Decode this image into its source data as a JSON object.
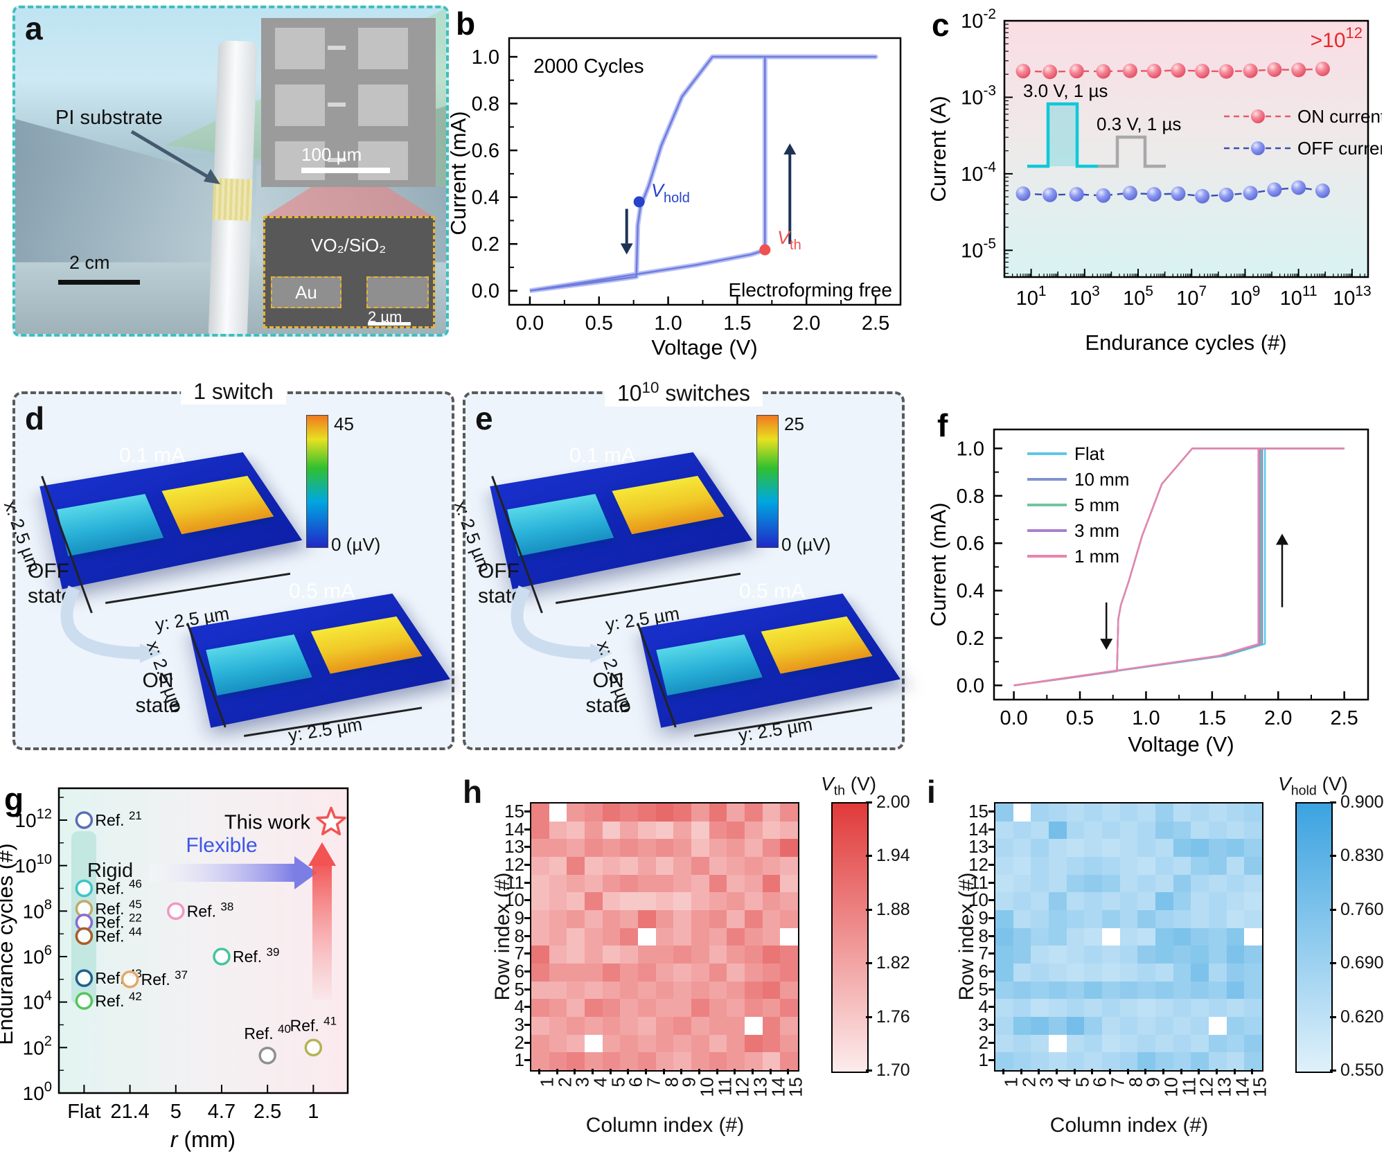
{
  "panels": {
    "a": {
      "label": "a",
      "pi_substrate": "PI substrate",
      "photo_scale": "2 cm",
      "sem_top_scale": "100 µm",
      "inset_film": "VO₂/SiO₂",
      "inset_electrode": "Au",
      "inset_scale": "2 µm"
    },
    "b": {
      "label": "b",
      "annotation": "2000 Cycles",
      "note": "Electroforming free",
      "xlabel": "Voltage (V)",
      "ylabel": "Current (mA)",
      "v_hold": {
        "prefix": "V",
        "sub": "hold"
      },
      "v_th": {
        "prefix": "V",
        "sub": "th"
      }
    },
    "c": {
      "label": "c",
      "xlabel": "Endurance cycles (#)",
      "ylabel": "Current (A)",
      "annotation": {
        "text": ">10",
        "exp": "12"
      }
    },
    "d": {
      "label": "d",
      "title": "1 switch",
      "map_top_current": "0.1 mA",
      "map_bottom_current": "0.5 mA",
      "x_axis": "x: 2.5 µm",
      "y_axis": "y: 2.5 µm",
      "off_state": "OFF state",
      "on_state": "ON state",
      "cbar_max": "45",
      "cbar_min": "0 (µV)"
    },
    "e": {
      "label": "e",
      "title": {
        "base": "10",
        "exp": "10",
        "suffix": " switches"
      },
      "map_top_current": "0.1 mA",
      "map_bottom_current": "0.5 mA",
      "x_axis": "x: 2.5 µm",
      "y_axis": "y: 2.5 µm",
      "off_state": "OFF state",
      "on_state": "ON state",
      "cbar_max": "25",
      "cbar_min": "0 (µV)"
    },
    "f": {
      "label": "f",
      "xlabel": "Voltage (V)",
      "ylabel": "Current (mA)"
    },
    "g": {
      "label": "g",
      "xlabel_italic": "r",
      "xlabel_rest": " (mm)",
      "ylabel": "Endurance cycles (#)"
    },
    "h": {
      "label": "h",
      "xlabel": "Column index (#)",
      "ylabel": "Row index (#)",
      "cbar_title": {
        "prefix": "V",
        "sub": "th",
        "suffix": " (V)"
      }
    },
    "i": {
      "label": "i",
      "xlabel": "Column index (#)",
      "ylabel": "Row index (#)",
      "cbar_title": {
        "prefix": "V",
        "sub": "hold",
        "suffix": " (V)"
      }
    }
  },
  "chart_data": [
    {
      "panel": "b",
      "type": "line",
      "title": "2000 Cycles",
      "note": "Electroforming free",
      "xlabel": "Voltage (V)",
      "ylabel": "Current (mA)",
      "xticks": [
        0.0,
        0.5,
        1.0,
        1.5,
        2.0,
        2.5
      ],
      "yticks": [
        0.0,
        0.2,
        0.4,
        0.6,
        0.8,
        1.0
      ],
      "v_th_V": 1.7,
      "v_hold_V": 0.79,
      "compliance_mA": 1.0,
      "sweep_up": [
        [
          0,
          0
        ],
        [
          0.6,
          0.055
        ],
        [
          1.2,
          0.11
        ],
        [
          1.6,
          0.155
        ],
        [
          1.68,
          0.17
        ],
        [
          1.7,
          0.175
        ],
        [
          1.7,
          1.0
        ],
        [
          2.5,
          1.0
        ]
      ],
      "sweep_down": [
        [
          2.5,
          1.0
        ],
        [
          1.32,
          1.0
        ],
        [
          1.1,
          0.83
        ],
        [
          0.95,
          0.62
        ],
        [
          0.86,
          0.45
        ],
        [
          0.8,
          0.36
        ],
        [
          0.78,
          0.28
        ],
        [
          0.77,
          0.06
        ],
        [
          0.4,
          0.03
        ],
        [
          0,
          0
        ]
      ],
      "line_color": "#6f7ce0",
      "halo_color": "#b9c2f2"
    },
    {
      "panel": "c",
      "type": "scatter",
      "xlabel": "Endurance cycles (#)",
      "ylabel": "Current (A)",
      "x_tick_exponents": [
        1,
        3,
        5,
        7,
        9,
        11,
        13
      ],
      "y_tick_exponents": [
        -2,
        -3,
        -4,
        -5
      ],
      "cycles_exponents": [
        0.7,
        1.7,
        2.7,
        3.7,
        4.7,
        5.6,
        6.5,
        7.4,
        8.3,
        9.2,
        10.1,
        11.0,
        11.9
      ],
      "on_current_A": [
        0.0022,
        0.00215,
        0.0022,
        0.00218,
        0.00222,
        0.0022,
        0.00225,
        0.0022,
        0.00218,
        0.00222,
        0.0023,
        0.00228,
        0.00235
      ],
      "off_current_A": [
        5.5e-05,
        5.3e-05,
        5.4e-05,
        5.2e-05,
        5.6e-05,
        5.4e-05,
        5.5e-05,
        5.1e-05,
        5.3e-05,
        5.6e-05,
        6.2e-05,
        6.6e-05,
        6e-05
      ],
      "on_off_ratio_annotation": ">10^12",
      "legend": [
        "ON current",
        "OFF current"
      ],
      "set_pulse": "3.0 V, 1 µs",
      "read_pulse": "0.3 V, 1 µs",
      "on_color": "#ee6b81",
      "off_color": "#7d8ce8"
    },
    {
      "panel": "f",
      "type": "line",
      "xlabel": "Voltage (V)",
      "ylabel": "Current (mA)",
      "xticks": [
        0.0,
        0.5,
        1.0,
        1.5,
        2.0,
        2.5
      ],
      "yticks": [
        0.0,
        0.2,
        0.4,
        0.6,
        0.8,
        1.0
      ],
      "series": [
        {
          "name": "Flat",
          "color": "#5ec8e6",
          "v_th": 1.9
        },
        {
          "name": "10 mm",
          "color": "#8292cf",
          "v_th": 1.88
        },
        {
          "name": "5 mm",
          "color": "#72c49e",
          "v_th": 1.87
        },
        {
          "name": "3 mm",
          "color": "#a981cc",
          "v_th": 1.86
        },
        {
          "name": "1 mm",
          "color": "#e885ad",
          "v_th": 1.85
        }
      ],
      "v_hold_V": 0.79,
      "sweep_down": [
        [
          2.5,
          1.0
        ],
        [
          1.35,
          1.0
        ],
        [
          1.12,
          0.85
        ],
        [
          0.97,
          0.63
        ],
        [
          0.87,
          0.44
        ],
        [
          0.81,
          0.34
        ],
        [
          0.79,
          0.28
        ],
        [
          0.78,
          0.06
        ],
        [
          0.4,
          0.03
        ],
        [
          0,
          0
        ]
      ]
    },
    {
      "panel": "g",
      "type": "scatter",
      "xlabel": "r (mm)",
      "ylabel": "Endurance cycles (#)",
      "x_categories": [
        "Flat",
        "21.4",
        "5",
        "4.7",
        "2.5",
        "1"
      ],
      "y_tick_exponents": [
        0,
        2,
        4,
        6,
        8,
        10,
        12
      ],
      "rigid_label": "Rigid",
      "flexible_label": "Flexible",
      "points": [
        {
          "label": "Ref.",
          "ref": "21",
          "x": "Flat",
          "cycles_exp": 12,
          "color": "#5a6db8"
        },
        {
          "label": "Ref.",
          "ref": "46",
          "x": "Flat",
          "cycles_exp": 9,
          "color": "#3fc3c8"
        },
        {
          "label": "Ref.",
          "ref": "45",
          "x": "Flat",
          "cycles_exp": 8.1,
          "color": "#c3a96a"
        },
        {
          "label": "Ref.",
          "ref": "22",
          "x": "Flat",
          "cycles_exp": 7.5,
          "color": "#8a6ad2"
        },
        {
          "label": "Ref.",
          "ref": "44",
          "x": "Flat",
          "cycles_exp": 6.9,
          "color": "#a85c28"
        },
        {
          "label": "Ref.",
          "ref": "43",
          "x": "Flat",
          "cycles_exp": 5.05,
          "color": "#1f5f8e"
        },
        {
          "label": "Ref.",
          "ref": "37",
          "x": "21.4",
          "cycles_exp": 5.0,
          "color": "#e5a765"
        },
        {
          "label": "Ref.",
          "ref": "42",
          "x": "Flat",
          "cycles_exp": 4.05,
          "color": "#55c45c"
        },
        {
          "label": "Ref.",
          "ref": "38",
          "x": "5",
          "cycles_exp": 8.0,
          "color": "#f396c5"
        },
        {
          "label": "Ref.",
          "ref": "39",
          "x": "4.7",
          "cycles_exp": 6.0,
          "color": "#43c69e"
        },
        {
          "label": "Ref.",
          "ref": "40",
          "x": "2.5",
          "cycles_exp": 1.65,
          "color": "#8f8f8f",
          "label_above": true
        },
        {
          "label": "Ref.",
          "ref": "41",
          "x": "1",
          "cycles_exp": 2.0,
          "color": "#b3b356",
          "label_above": true
        }
      ],
      "this_work": {
        "label": "This work",
        "x": "1",
        "cycles_exp": 11.9,
        "color": "#f25353"
      }
    },
    {
      "panel": "h",
      "type": "heatmap",
      "title": "Vth (V)",
      "xlabel": "Column index (#)",
      "ylabel": "Row index (#)",
      "col_labels": [
        "1",
        "2",
        "3",
        "4",
        "5",
        "6",
        "7",
        "8",
        "9",
        "10",
        "11",
        "12",
        "13",
        "14",
        "15"
      ],
      "row_labels_top_to_bottom": [
        "15",
        "14",
        "13",
        "12",
        "11",
        "10",
        "9",
        "8",
        "7",
        "6",
        "5",
        "4",
        "3",
        "2",
        "1"
      ],
      "colorbar": {
        "min": 1.7,
        "max": 2.0,
        "ticks": [
          "2.00",
          "1.94",
          "1.88",
          "1.82",
          "1.76",
          "1.70"
        ],
        "low_color": "#fdecec",
        "high_color": "#e13a3a"
      },
      "values_rows_top_to_bottom": [
        [
          1.88,
          null,
          1.84,
          1.86,
          1.9,
          1.88,
          1.9,
          1.92,
          1.9,
          1.84,
          1.9,
          1.82,
          1.88,
          1.8,
          1.86
        ],
        [
          1.88,
          1.8,
          1.78,
          1.84,
          1.76,
          1.82,
          1.78,
          1.76,
          1.82,
          1.76,
          1.86,
          1.88,
          1.82,
          1.78,
          1.8
        ],
        [
          1.84,
          1.84,
          1.82,
          1.86,
          1.84,
          1.86,
          1.84,
          1.86,
          1.84,
          1.78,
          1.82,
          1.84,
          1.8,
          1.86,
          1.92
        ],
        [
          1.8,
          1.78,
          1.88,
          1.78,
          1.8,
          1.78,
          1.82,
          1.78,
          1.82,
          1.86,
          1.8,
          1.82,
          1.84,
          1.82,
          1.8
        ],
        [
          1.78,
          1.8,
          1.82,
          1.8,
          1.84,
          1.86,
          1.84,
          1.84,
          1.82,
          1.8,
          1.88,
          1.8,
          1.82,
          1.9,
          1.78
        ],
        [
          1.78,
          1.8,
          1.78,
          1.88,
          1.78,
          1.76,
          1.76,
          1.78,
          1.76,
          1.8,
          1.82,
          1.84,
          1.8,
          1.84,
          1.82
        ],
        [
          1.8,
          1.82,
          1.84,
          1.8,
          1.84,
          1.82,
          1.9,
          1.84,
          1.8,
          1.84,
          1.86,
          1.8,
          1.88,
          1.82,
          1.84
        ],
        [
          1.8,
          1.82,
          1.78,
          1.82,
          1.84,
          1.88,
          null,
          1.82,
          1.8,
          1.84,
          1.82,
          1.88,
          1.84,
          1.82,
          null
        ],
        [
          1.9,
          1.8,
          1.78,
          1.82,
          1.78,
          1.8,
          1.84,
          1.84,
          1.86,
          1.84,
          1.8,
          1.84,
          1.86,
          1.9,
          1.88
        ],
        [
          1.88,
          1.84,
          1.84,
          1.84,
          1.88,
          1.84,
          1.86,
          1.82,
          1.8,
          1.82,
          1.86,
          1.8,
          1.84,
          1.86,
          1.88
        ],
        [
          1.8,
          1.8,
          1.82,
          1.8,
          1.82,
          1.84,
          1.82,
          1.84,
          1.82,
          1.84,
          1.82,
          1.84,
          1.88,
          1.9,
          1.84
        ],
        [
          1.86,
          1.84,
          1.8,
          1.88,
          1.86,
          1.82,
          1.84,
          1.82,
          1.82,
          1.88,
          1.84,
          1.82,
          1.86,
          1.84,
          1.88
        ],
        [
          1.8,
          1.82,
          1.84,
          1.82,
          1.84,
          1.82,
          1.8,
          1.84,
          1.86,
          1.82,
          1.84,
          1.84,
          null,
          1.88,
          1.82
        ],
        [
          1.84,
          1.82,
          1.8,
          null,
          1.82,
          1.84,
          1.82,
          1.84,
          1.82,
          1.84,
          1.8,
          1.84,
          1.9,
          1.88,
          1.84
        ],
        [
          1.84,
          1.86,
          1.88,
          1.84,
          1.86,
          1.84,
          1.86,
          1.82,
          1.8,
          1.84,
          1.86,
          1.84,
          1.82,
          1.78,
          1.86
        ]
      ]
    },
    {
      "panel": "i",
      "type": "heatmap",
      "title": "Vhold (V)",
      "xlabel": "Column index (#)",
      "ylabel": "Row index (#)",
      "col_labels": [
        "1",
        "2",
        "3",
        "4",
        "5",
        "6",
        "7",
        "8",
        "9",
        "10",
        "11",
        "12",
        "13",
        "14",
        "15"
      ],
      "row_labels_top_to_bottom": [
        "15",
        "14",
        "13",
        "12",
        "11",
        "10",
        "9",
        "8",
        "7",
        "6",
        "5",
        "4",
        "3",
        "2",
        "1"
      ],
      "colorbar": {
        "min": 0.55,
        "max": 0.9,
        "ticks": [
          "0.900",
          "0.830",
          "0.760",
          "0.690",
          "0.620",
          "0.550"
        ],
        "low_color": "#e0f1fb",
        "high_color": "#3ba3e0"
      },
      "values_rows_top_to_bottom": [
        [
          0.72,
          null,
          0.68,
          0.66,
          0.64,
          0.66,
          0.64,
          0.66,
          0.64,
          0.7,
          0.64,
          0.66,
          0.64,
          0.66,
          0.68
        ],
        [
          0.64,
          0.66,
          0.64,
          0.78,
          0.66,
          0.64,
          0.66,
          0.64,
          0.66,
          0.72,
          0.7,
          0.64,
          0.66,
          0.64,
          0.66
        ],
        [
          0.66,
          0.64,
          0.68,
          0.64,
          0.62,
          0.64,
          0.62,
          0.64,
          0.66,
          0.64,
          0.74,
          0.76,
          0.72,
          0.74,
          0.7
        ],
        [
          0.64,
          0.62,
          0.66,
          0.64,
          0.66,
          0.68,
          0.66,
          0.64,
          0.62,
          0.66,
          0.64,
          0.7,
          0.72,
          0.64,
          0.72
        ],
        [
          0.62,
          0.64,
          0.66,
          0.64,
          0.7,
          0.72,
          0.7,
          0.64,
          0.66,
          0.64,
          0.72,
          0.66,
          0.64,
          0.66,
          0.64
        ],
        [
          0.64,
          0.66,
          0.64,
          0.72,
          0.64,
          0.66,
          0.64,
          0.66,
          0.64,
          0.76,
          0.7,
          0.64,
          0.66,
          0.64,
          0.62
        ],
        [
          0.74,
          0.64,
          0.66,
          0.7,
          0.68,
          0.66,
          0.7,
          0.66,
          0.72,
          0.68,
          0.66,
          0.64,
          0.66,
          0.62,
          0.64
        ],
        [
          0.76,
          0.72,
          0.68,
          0.7,
          0.64,
          0.62,
          null,
          0.64,
          0.62,
          0.74,
          0.76,
          0.72,
          0.7,
          0.74,
          null
        ],
        [
          0.74,
          0.72,
          0.64,
          0.62,
          0.64,
          0.66,
          0.64,
          0.66,
          0.72,
          0.74,
          0.72,
          0.74,
          0.7,
          0.76,
          0.72
        ],
        [
          0.74,
          0.64,
          0.66,
          0.64,
          0.62,
          0.64,
          0.62,
          0.64,
          0.66,
          0.64,
          0.7,
          0.76,
          0.66,
          0.72,
          0.7
        ],
        [
          0.7,
          0.72,
          0.7,
          0.72,
          0.7,
          0.74,
          0.7,
          0.72,
          0.7,
          0.72,
          0.7,
          0.72,
          0.7,
          0.76,
          0.7
        ],
        [
          0.64,
          0.66,
          0.62,
          0.64,
          0.66,
          0.64,
          0.66,
          0.64,
          0.62,
          0.64,
          0.66,
          0.64,
          0.66,
          0.64,
          0.66
        ],
        [
          0.66,
          0.74,
          0.76,
          0.72,
          0.78,
          0.7,
          0.64,
          0.66,
          0.64,
          0.66,
          0.64,
          0.66,
          null,
          0.7,
          0.68
        ],
        [
          0.64,
          0.66,
          0.64,
          null,
          0.64,
          0.66,
          0.62,
          0.64,
          0.66,
          0.64,
          0.66,
          0.64,
          0.7,
          0.68,
          0.72
        ],
        [
          0.7,
          0.68,
          0.66,
          0.64,
          0.66,
          0.64,
          0.66,
          0.68,
          0.74,
          0.7,
          0.68,
          0.72,
          0.66,
          0.64,
          0.7
        ]
      ]
    }
  ]
}
